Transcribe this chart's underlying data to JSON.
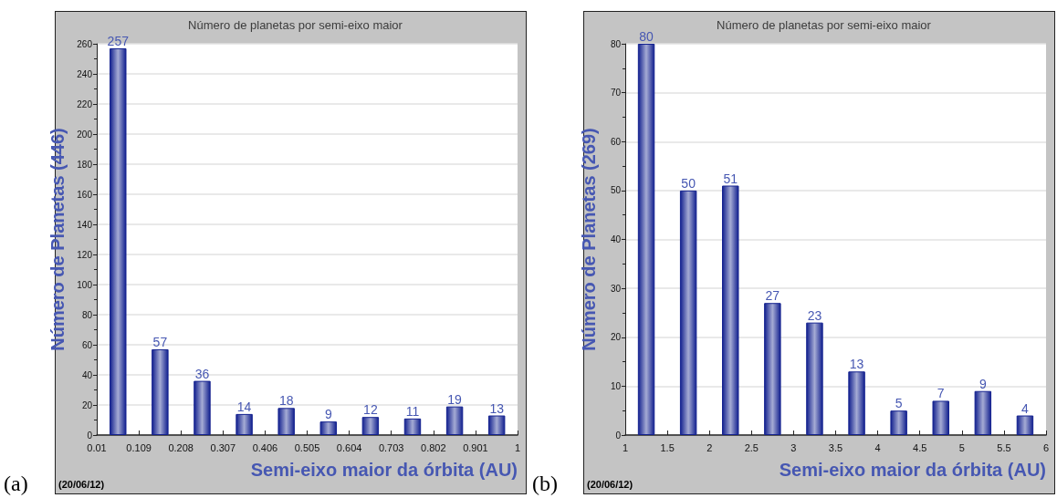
{
  "chart_data": [
    {
      "type": "bar",
      "title": "Número de planetas por semi-eixo maior",
      "xlabel": "Semi-eixo maior da órbita (AU)",
      "ylabel": "Número de Planetas (446)",
      "x": [
        0.06,
        0.159,
        0.258,
        0.357,
        0.456,
        0.555,
        0.654,
        0.753,
        0.852,
        0.951
      ],
      "values": [
        257,
        57,
        36,
        14,
        18,
        9,
        12,
        11,
        19,
        13
      ],
      "color": "#13218f",
      "xlim": [
        0.01,
        1
      ],
      "xticks": [
        0.01,
        0.109,
        0.208,
        0.307,
        0.406,
        0.505,
        0.604,
        0.703,
        0.802,
        0.901,
        1
      ],
      "ylim": [
        0,
        260
      ],
      "yticks": [
        0,
        20,
        40,
        60,
        80,
        100,
        120,
        140,
        160,
        180,
        200,
        220,
        240,
        260
      ],
      "grid": "y",
      "data_labels": true,
      "annotations": [
        "(20/06/12)",
        "(a)"
      ]
    },
    {
      "type": "bar",
      "title": "Número de planetas por semi-eixo maior",
      "xlabel": "Semi-eixo maior da órbita (AU)",
      "ylabel": "Número de Planetas (269)",
      "x": [
        1.25,
        1.75,
        2.25,
        2.75,
        3.25,
        3.75,
        4.25,
        4.75,
        5.25,
        5.75
      ],
      "values": [
        80,
        50,
        51,
        27,
        23,
        13,
        5,
        7,
        9,
        4
      ],
      "color": "#13218f",
      "xlim": [
        1,
        6
      ],
      "xticks": [
        1,
        1.5,
        2,
        2.5,
        3,
        3.5,
        4,
        4.5,
        5,
        5.5,
        6
      ],
      "ylim": [
        0,
        80
      ],
      "yticks": [
        0,
        10,
        20,
        30,
        40,
        50,
        60,
        70,
        80
      ],
      "grid": "y",
      "data_labels": true,
      "annotations": [
        "(20/06/12)",
        "(b)"
      ]
    }
  ]
}
